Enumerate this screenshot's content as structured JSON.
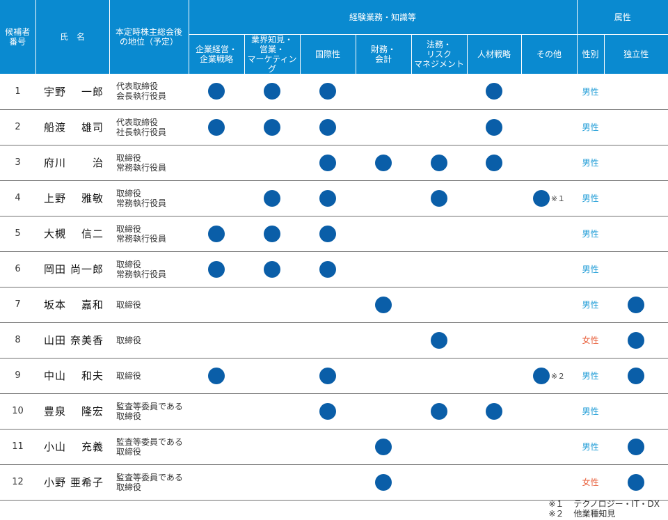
{
  "header": {
    "candidate_no": [
      "候補者",
      "番号"
    ],
    "name": "氏　名",
    "position": [
      "本定時株主総会後",
      "の地位（予定）"
    ],
    "experience_group": "経験業務・知識等",
    "attribute_group": "属性",
    "experience_cols": [
      [
        "企業経営・",
        "企業戦略"
      ],
      [
        "業界知見・",
        "営業・",
        "マーケティング"
      ],
      [
        "国際性"
      ],
      [
        "財務・",
        "会計"
      ],
      [
        "法務・",
        "リスク",
        "マネジメント"
      ],
      [
        "人材戦略"
      ],
      [
        "その他"
      ]
    ],
    "gender": "性別",
    "independence": "独立性"
  },
  "rows": [
    {
      "no": "1",
      "family": "宇野",
      "given": "一郎",
      "position": [
        "代表取締役",
        "会長執行役員"
      ],
      "skills": [
        1,
        1,
        1,
        0,
        0,
        1,
        0
      ],
      "other_note": "",
      "gender": "男性",
      "gender_type": "male",
      "independent": false
    },
    {
      "no": "2",
      "family": "船渡",
      "given": "雄司",
      "position": [
        "代表取締役",
        "社長執行役員"
      ],
      "skills": [
        1,
        1,
        1,
        0,
        0,
        1,
        0
      ],
      "other_note": "",
      "gender": "男性",
      "gender_type": "male",
      "independent": false
    },
    {
      "no": "3",
      "family": "府川",
      "given": "治",
      "position": [
        "取締役",
        "常務執行役員"
      ],
      "skills": [
        0,
        0,
        1,
        1,
        1,
        1,
        0
      ],
      "other_note": "",
      "gender": "男性",
      "gender_type": "male",
      "independent": false
    },
    {
      "no": "4",
      "family": "上野",
      "given": "雅敏",
      "position": [
        "取締役",
        "常務執行役員"
      ],
      "skills": [
        0,
        1,
        1,
        0,
        1,
        0,
        1
      ],
      "other_note": "※１",
      "gender": "男性",
      "gender_type": "male",
      "independent": false
    },
    {
      "no": "5",
      "family": "大槻",
      "given": "信二",
      "position": [
        "取締役",
        "常務執行役員"
      ],
      "skills": [
        1,
        1,
        1,
        0,
        0,
        0,
        0
      ],
      "other_note": "",
      "gender": "男性",
      "gender_type": "male",
      "independent": false
    },
    {
      "no": "6",
      "family": "岡田",
      "given": "尚一郎",
      "position": [
        "取締役",
        "常務執行役員"
      ],
      "skills": [
        1,
        1,
        1,
        0,
        0,
        0,
        0
      ],
      "other_note": "",
      "gender": "男性",
      "gender_type": "male",
      "independent": false
    },
    {
      "no": "7",
      "family": "坂本",
      "given": "嘉和",
      "position": [
        "取締役"
      ],
      "skills": [
        0,
        0,
        0,
        1,
        0,
        0,
        0
      ],
      "other_note": "",
      "gender": "男性",
      "gender_type": "male",
      "independent": true
    },
    {
      "no": "8",
      "family": "山田",
      "given": "奈美香",
      "position": [
        "取締役"
      ],
      "skills": [
        0,
        0,
        0,
        0,
        1,
        0,
        0
      ],
      "other_note": "",
      "gender": "女性",
      "gender_type": "female",
      "independent": true
    },
    {
      "no": "9",
      "family": "中山",
      "given": "和夫",
      "position": [
        "取締役"
      ],
      "skills": [
        1,
        0,
        1,
        0,
        0,
        0,
        1
      ],
      "other_note": "※２",
      "gender": "男性",
      "gender_type": "male",
      "independent": true
    },
    {
      "no": "10",
      "family": "豊泉",
      "given": "隆宏",
      "position": [
        "監査等委員である",
        "取締役"
      ],
      "skills": [
        0,
        0,
        1,
        0,
        1,
        1,
        0
      ],
      "other_note": "",
      "gender": "男性",
      "gender_type": "male",
      "independent": false
    },
    {
      "no": "11",
      "family": "小山",
      "given": "充義",
      "position": [
        "監査等委員である",
        "取締役"
      ],
      "skills": [
        0,
        0,
        0,
        1,
        0,
        0,
        0
      ],
      "other_note": "",
      "gender": "男性",
      "gender_type": "male",
      "independent": true
    },
    {
      "no": "12",
      "family": "小野",
      "given": "亜希子",
      "position": [
        "監査等委員である",
        "取締役"
      ],
      "skills": [
        0,
        0,
        0,
        1,
        0,
        0,
        0
      ],
      "other_note": "",
      "gender": "女性",
      "gender_type": "female",
      "independent": true
    }
  ],
  "footnotes": [
    {
      "mark": "※１",
      "text": "テクノロジー・IT・DX"
    },
    {
      "mark": "※２",
      "text": "他業種知見"
    }
  ],
  "colors": {
    "header_bg": "#0a8ad0",
    "dot": "#0a5ea8",
    "male_text": "#1a9ad6",
    "female_text": "#e8603c"
  }
}
